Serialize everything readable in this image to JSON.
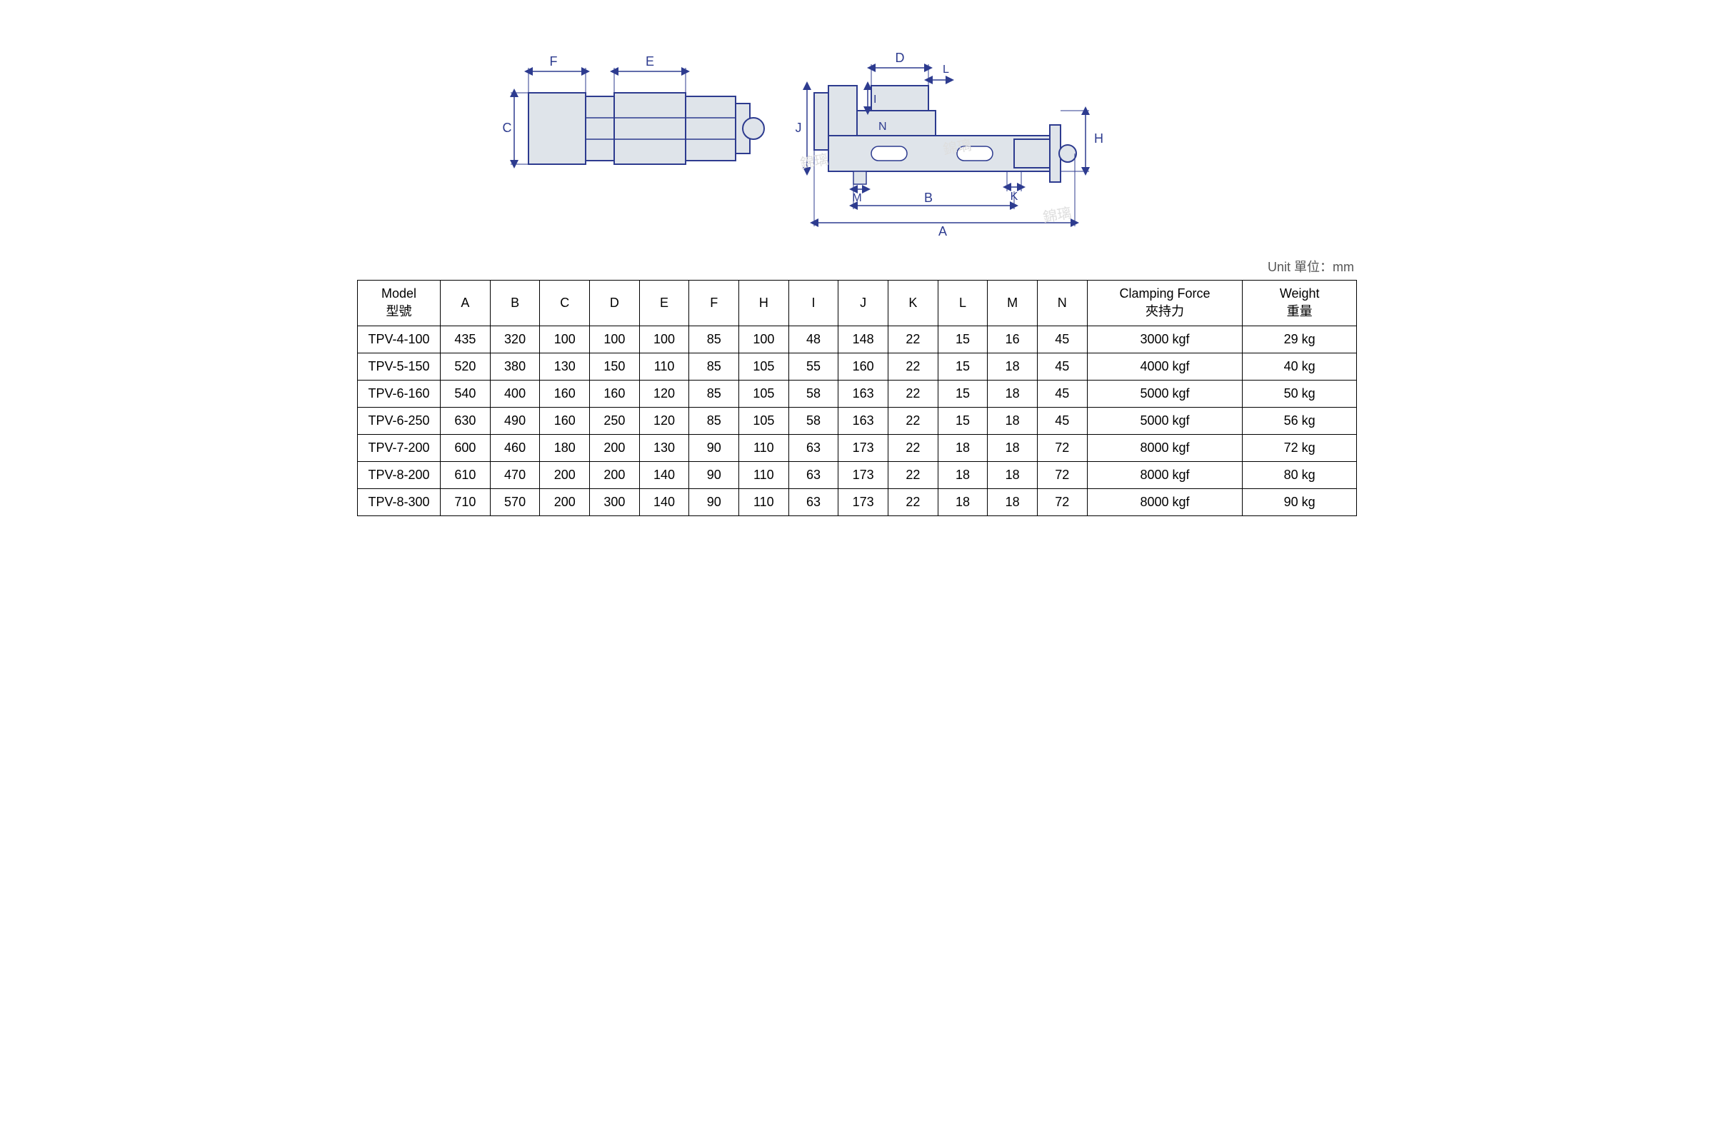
{
  "unit_label": "Unit 單位：mm",
  "diagram": {
    "stroke": "#2d3b8f",
    "fill": "#dfe4ea",
    "label_color": "#2d3b8f",
    "label_font": 18,
    "top_labels": [
      "F",
      "E",
      "D",
      "L",
      "I",
      "N",
      "J",
      "H",
      "C",
      "M",
      "B",
      "K",
      "A"
    ],
    "watermarks": [
      "錦璃",
      "錦璃",
      "錦璃"
    ]
  },
  "table": {
    "headers": [
      {
        "en": "Model",
        "zh": "型號"
      },
      {
        "en": "A"
      },
      {
        "en": "B"
      },
      {
        "en": "C"
      },
      {
        "en": "D"
      },
      {
        "en": "E"
      },
      {
        "en": "F"
      },
      {
        "en": "H"
      },
      {
        "en": "I"
      },
      {
        "en": "J"
      },
      {
        "en": "K"
      },
      {
        "en": "L"
      },
      {
        "en": "M"
      },
      {
        "en": "N"
      },
      {
        "en": "Clamping Force",
        "zh": "夾持力"
      },
      {
        "en": "Weight",
        "zh": "重量"
      }
    ],
    "rows": [
      [
        "TPV-4-100",
        "435",
        "320",
        "100",
        "100",
        "100",
        "85",
        "100",
        "48",
        "148",
        "22",
        "15",
        "16",
        "45",
        "3000 kgf",
        "29 kg"
      ],
      [
        "TPV-5-150",
        "520",
        "380",
        "130",
        "150",
        "110",
        "85",
        "105",
        "55",
        "160",
        "22",
        "15",
        "18",
        "45",
        "4000 kgf",
        "40 kg"
      ],
      [
        "TPV-6-160",
        "540",
        "400",
        "160",
        "160",
        "120",
        "85",
        "105",
        "58",
        "163",
        "22",
        "15",
        "18",
        "45",
        "5000 kgf",
        "50 kg"
      ],
      [
        "TPV-6-250",
        "630",
        "490",
        "160",
        "250",
        "120",
        "85",
        "105",
        "58",
        "163",
        "22",
        "15",
        "18",
        "45",
        "5000 kgf",
        "56 kg"
      ],
      [
        "TPV-7-200",
        "600",
        "460",
        "180",
        "200",
        "130",
        "90",
        "110",
        "63",
        "173",
        "22",
        "18",
        "18",
        "72",
        "8000 kgf",
        "72 kg"
      ],
      [
        "TPV-8-200",
        "610",
        "470",
        "200",
        "200",
        "140",
        "90",
        "110",
        "63",
        "173",
        "22",
        "18",
        "18",
        "72",
        "8000 kgf",
        "80 kg"
      ],
      [
        "TPV-8-300",
        "710",
        "570",
        "200",
        "300",
        "140",
        "90",
        "110",
        "63",
        "173",
        "22",
        "18",
        "18",
        "72",
        "8000 kgf",
        "90 kg"
      ]
    ],
    "border_color": "#000000",
    "header_bg": "#ffffff",
    "cell_fontsize": 18
  }
}
